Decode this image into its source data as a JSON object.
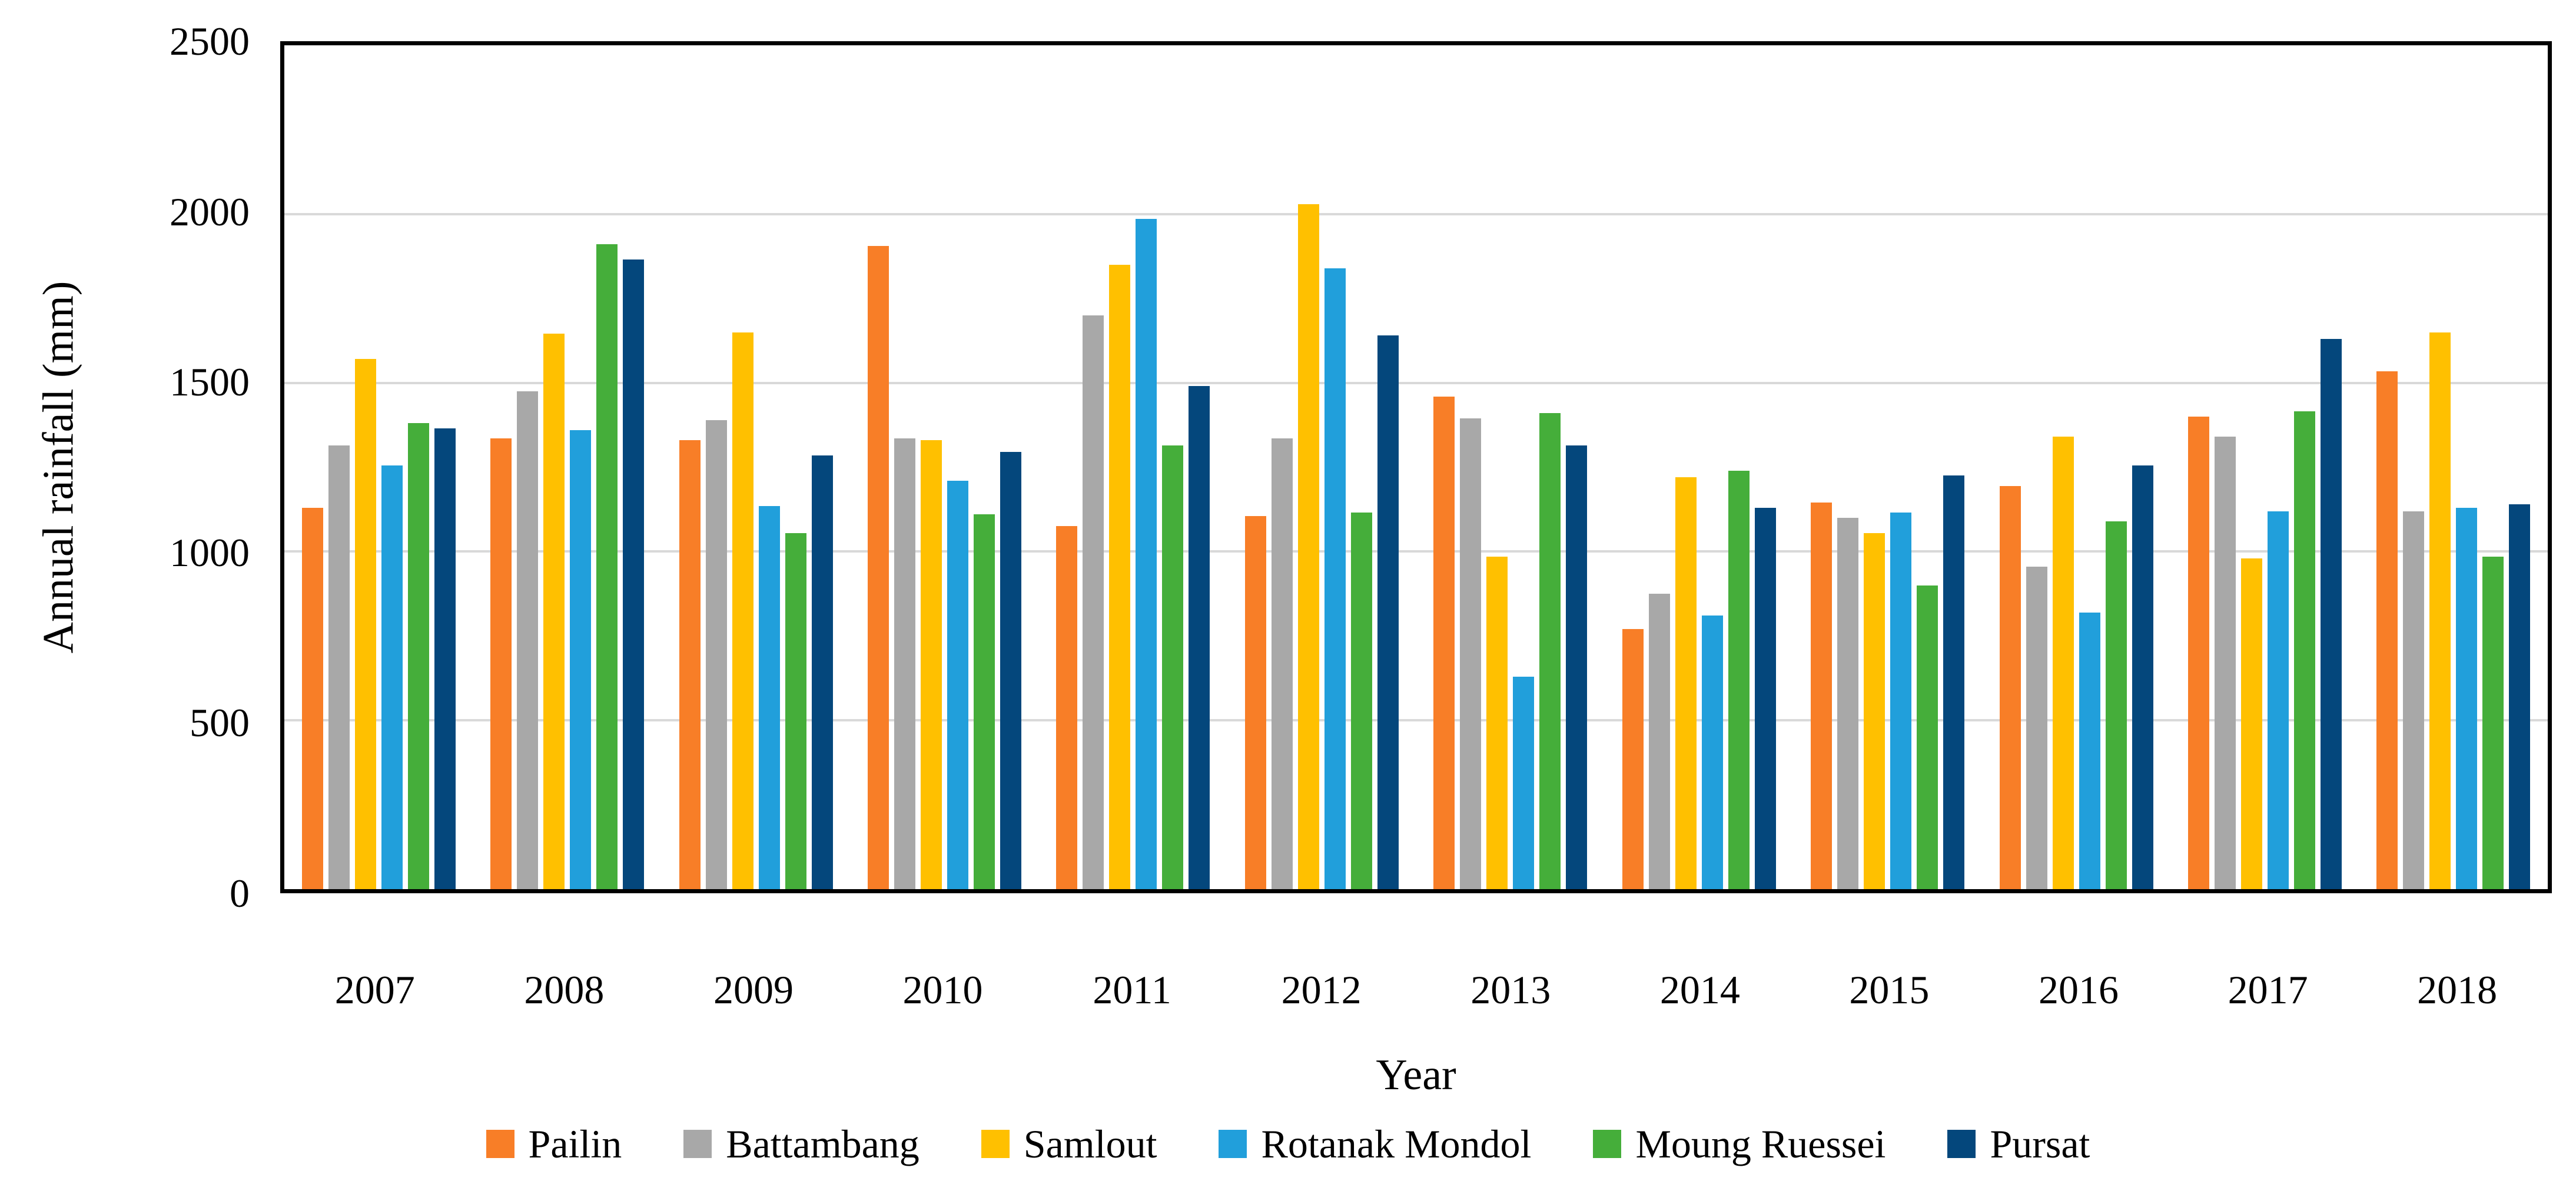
{
  "chart_data": {
    "type": "bar",
    "title": "",
    "xlabel": "Year",
    "ylabel": "Annual rainfall (mm)",
    "ylim": [
      0,
      2500
    ],
    "yticks": [
      0,
      500,
      1000,
      1500,
      2000,
      2500
    ],
    "grid": "horizontal",
    "gridline_color": "#D9D9D9",
    "axis_color": "#000000",
    "legend_position": "bottom",
    "categories": [
      "2007",
      "2008",
      "2009",
      "2010",
      "2011",
      "2012",
      "2013",
      "2014",
      "2015",
      "2016",
      "2017",
      "2018"
    ],
    "series": [
      {
        "name": "Pailin",
        "color": "#F87E27",
        "values": [
          1130,
          1335,
          1330,
          1905,
          1075,
          1105,
          1460,
          770,
          1145,
          1195,
          1400,
          1535
        ]
      },
      {
        "name": "Battambang",
        "color": "#A8A8A8",
        "values": [
          1315,
          1475,
          1390,
          1335,
          1700,
          1335,
          1395,
          875,
          1100,
          955,
          1340,
          1120
        ]
      },
      {
        "name": "Samlout",
        "color": "#FFC000",
        "values": [
          1570,
          1645,
          1650,
          1330,
          1850,
          2030,
          985,
          1220,
          1055,
          1340,
          980,
          1650
        ]
      },
      {
        "name": "Rotanak Mondol",
        "color": "#219FDB",
        "values": [
          1255,
          1360,
          1135,
          1210,
          1985,
          1840,
          630,
          810,
          1115,
          820,
          1120,
          1130
        ]
      },
      {
        "name": "Moung Ruessei",
        "color": "#45AE3A",
        "values": [
          1380,
          1910,
          1055,
          1110,
          1315,
          1115,
          1410,
          1240,
          900,
          1090,
          1415,
          985
        ]
      },
      {
        "name": "Pursat",
        "color": "#04477C",
        "values": [
          1365,
          1865,
          1285,
          1295,
          1490,
          1640,
          1315,
          1130,
          1225,
          1255,
          1630,
          1140
        ]
      }
    ]
  }
}
